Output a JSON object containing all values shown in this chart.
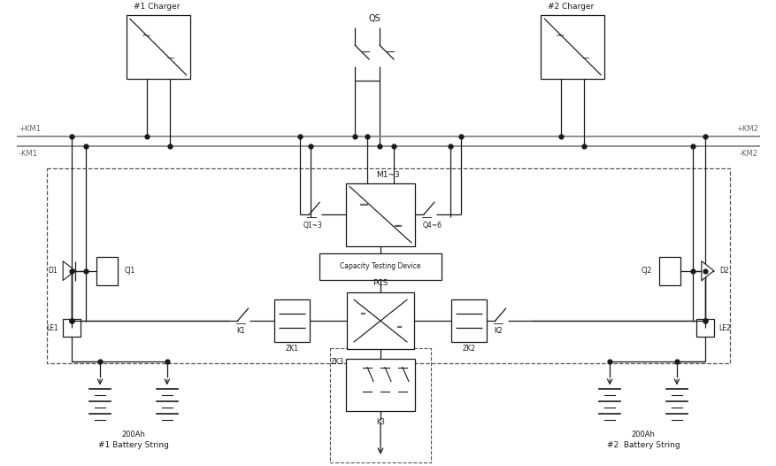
{
  "figsize": [
    8.78,
    5.26
  ],
  "dpi": 100,
  "bg": "#ffffff",
  "lc": "#1a1a1a",
  "bc": "#888888",
  "lw": 0.9,
  "lw_bus": 1.3,
  "lw_thin": 0.6,
  "labels": {
    "charger1": "#1 Charger",
    "charger2": "#2 Charger",
    "qs": "QS",
    "km1p": "+KM1",
    "km1m": "-KM1",
    "km2p": "+KM2",
    "km2m": "-KM2",
    "m3": "M1~3",
    "q13": "Q1~3",
    "q46": "Q4~6",
    "ctd": "Capacity Testing Device",
    "pcs": "PCS",
    "k1": "K1",
    "k2": "K2",
    "zk1": "ZK1",
    "zk2": "ZK2",
    "zk3": "ZK3",
    "k3": "K3",
    "d1": "D1",
    "d2": "D2",
    "cj1": "CJ1",
    "cj2": "CJ2",
    "le1": "LE1",
    "le2": "LE2",
    "bat_cap": "200Ah",
    "bat1": "#1 Battery String",
    "bat2": "#2  Battery String"
  }
}
